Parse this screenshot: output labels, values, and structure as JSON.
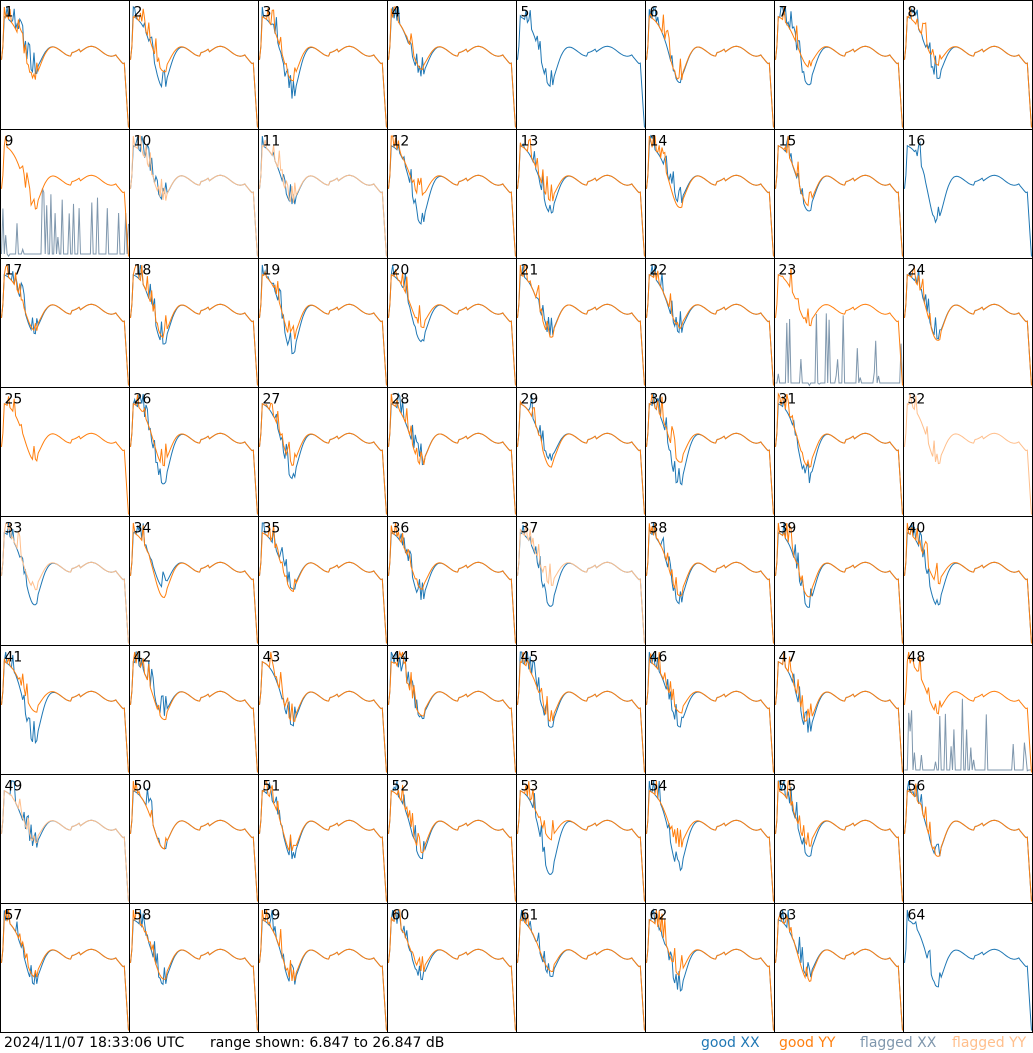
{
  "timestamp": "2024/11/07 18:33:06 UTC",
  "range_text": "range shown: 6.847 to 26.847 dB",
  "legend": {
    "good_xx": "good XX",
    "good_yy": "good YY",
    "flagged_xx": "flagged XX",
    "flagged_yy": "flagged YY"
  },
  "colors": {
    "good_xx": "#1f77b4",
    "good_yy": "#ff7f0e",
    "flagged_xx": "#7f97ad",
    "flagged_yy": "#ffbf8c"
  },
  "chart_data": {
    "type": "line",
    "grid_rows": 8,
    "grid_cols": 8,
    "ylim": [
      6.847,
      26.847
    ],
    "panel_labels": [
      "1",
      "2",
      "3",
      "4",
      "5",
      "6",
      "7",
      "8",
      "9",
      "10",
      "11",
      "12",
      "13",
      "14",
      "15",
      "16",
      "17",
      "18",
      "19",
      "20",
      "21",
      "22",
      "23",
      "24",
      "25",
      "26",
      "27",
      "28",
      "29",
      "30",
      "31",
      "32",
      "33",
      "34",
      "35",
      "36",
      "37",
      "38",
      "39",
      "40",
      "41",
      "42",
      "43",
      "44",
      "45",
      "46",
      "47",
      "48",
      "49",
      "50",
      "51",
      "52",
      "53",
      "54",
      "55",
      "56",
      "57",
      "58",
      "59",
      "60",
      "61",
      "62",
      "63",
      "64"
    ],
    "series_styles": [
      "good XX",
      "good YY",
      "flagged XX",
      "flagged YY"
    ],
    "flagged_xx_panels": [
      9,
      23,
      48
    ],
    "flagged_yy_panels": [
      10,
      11,
      32,
      33,
      37,
      49
    ],
    "only_xx_panels": [
      5,
      16,
      64
    ],
    "only_yy_panels": [
      25,
      32
    ]
  }
}
